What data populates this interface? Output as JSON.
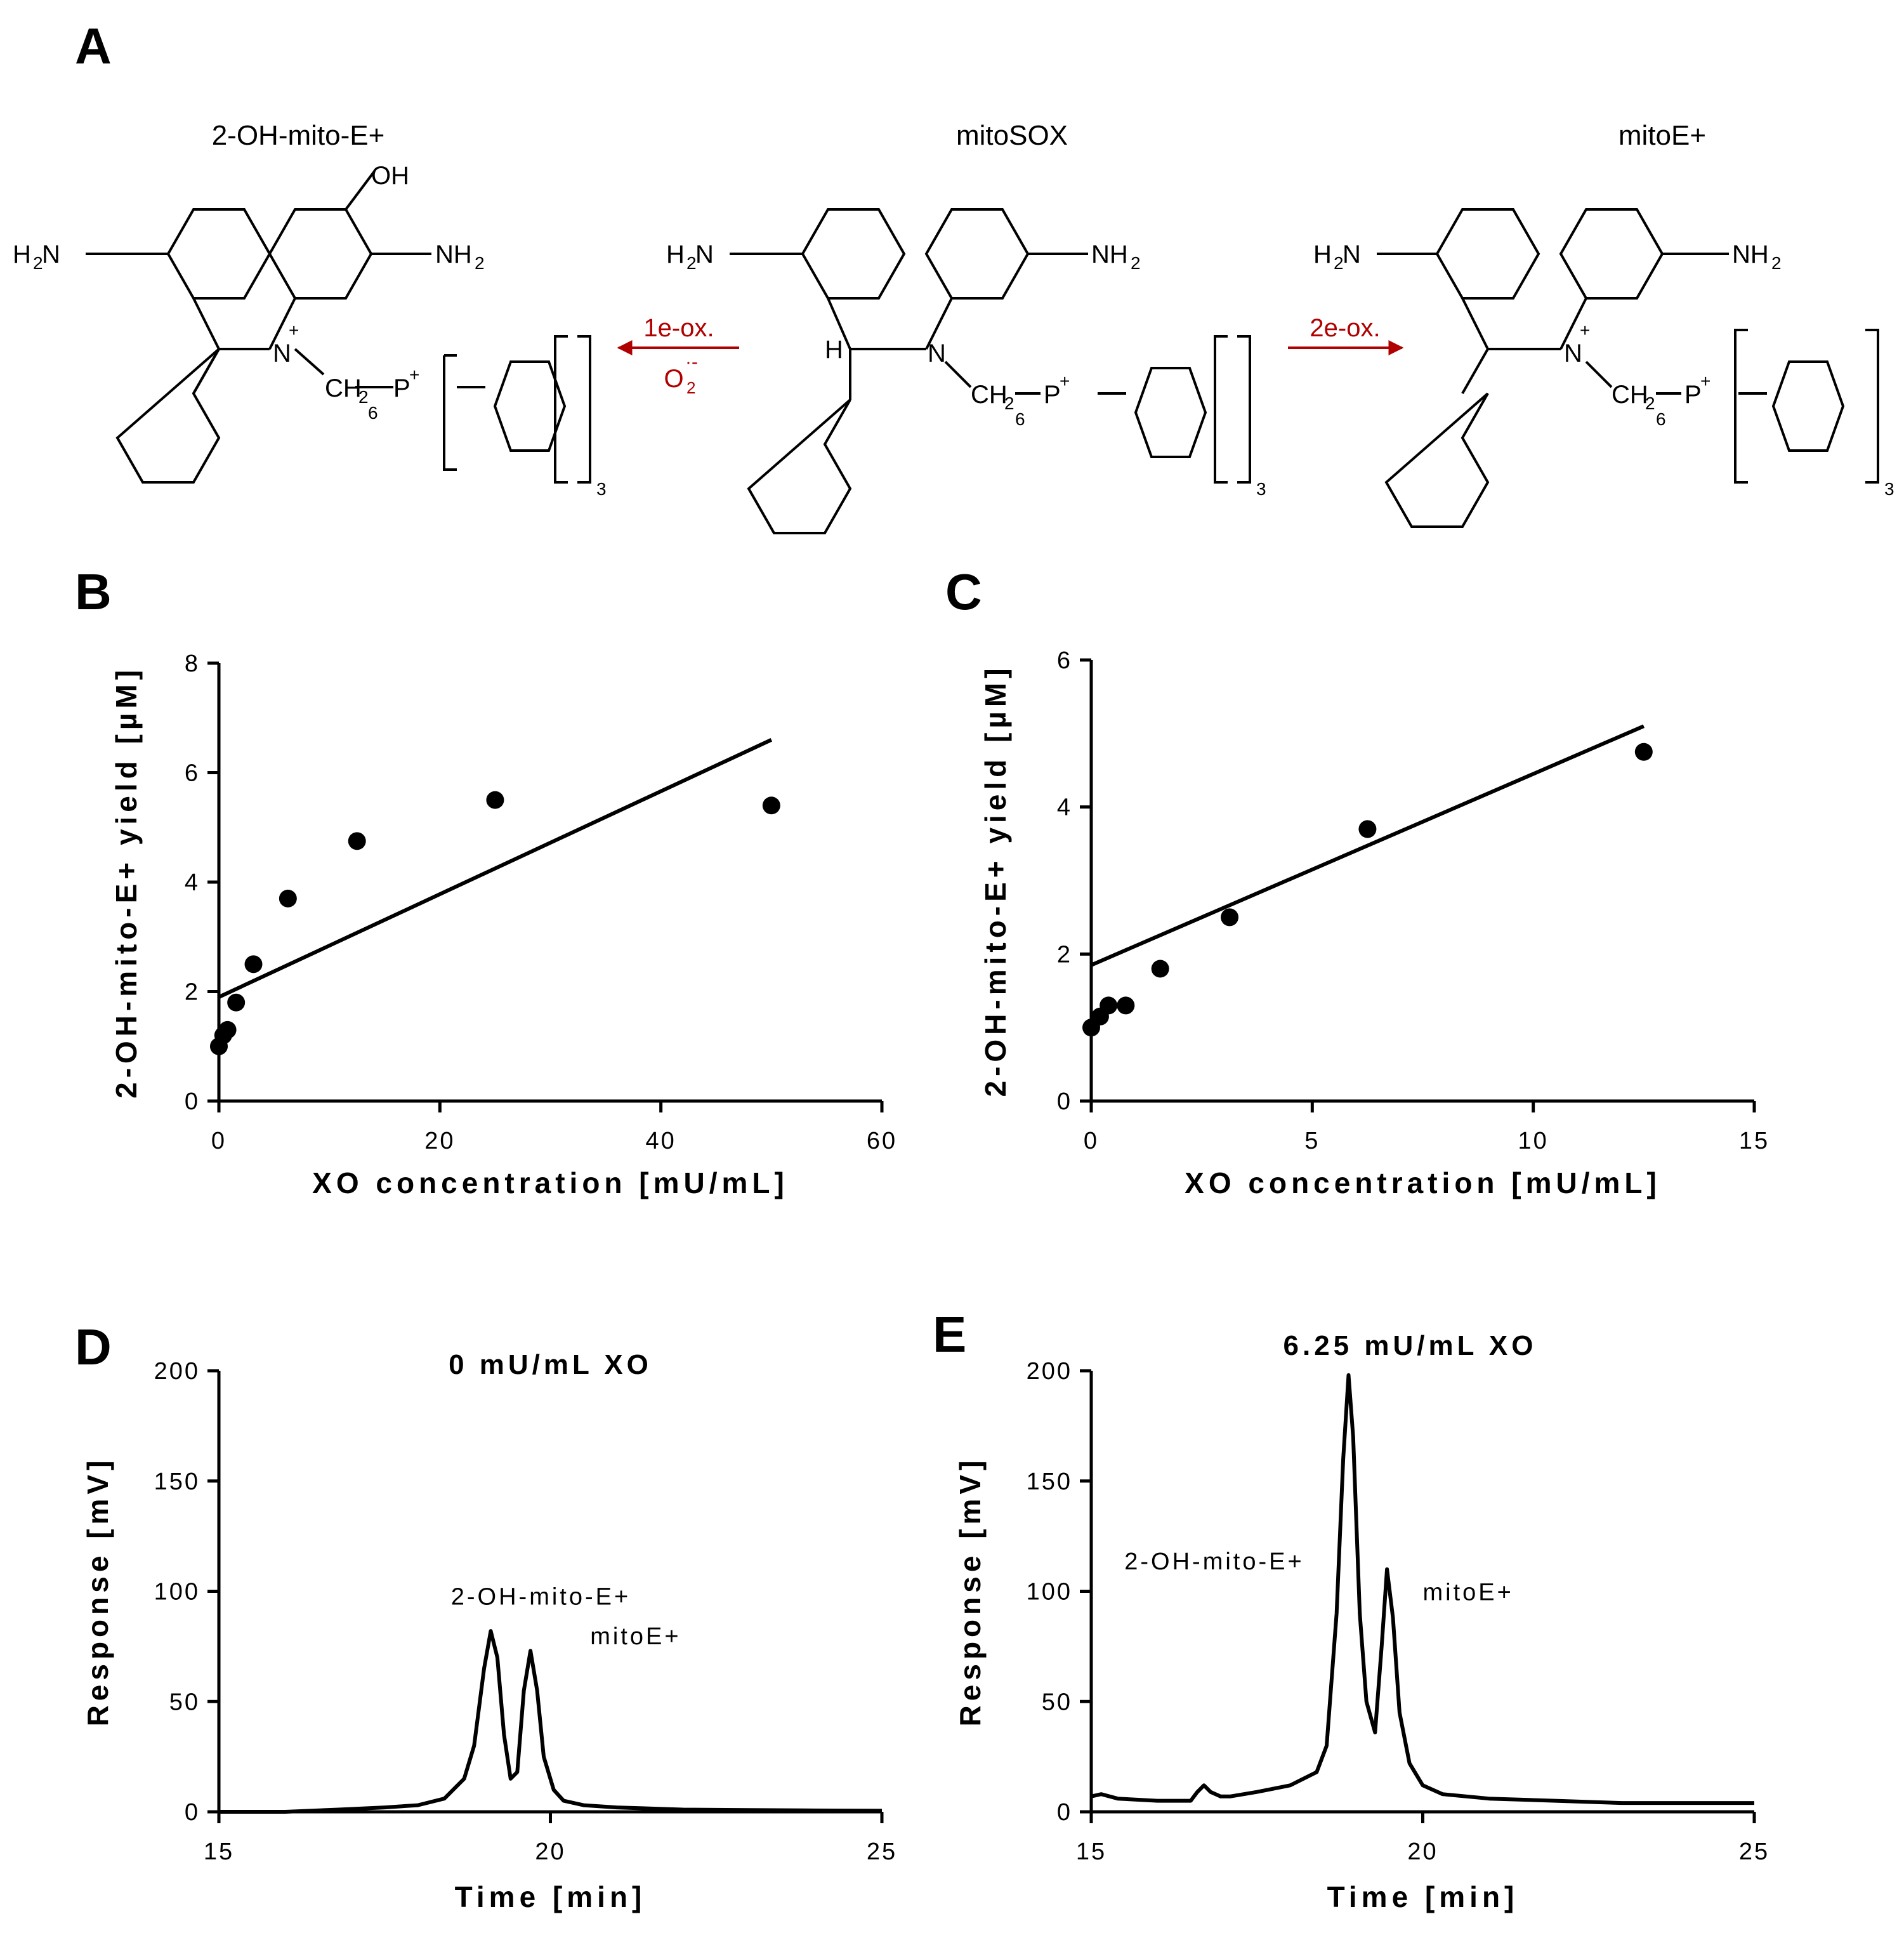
{
  "panel_letters": {
    "a": "A",
    "b": "B",
    "c": "C",
    "d": "D",
    "e": "E"
  },
  "scheme": {
    "left_name": "2-OH-mito-E+",
    "center_name": "mitoSOX",
    "right_name": "mitoE+",
    "left_arrow_top": "1e-ox.",
    "left_arrow_bottom": "O",
    "left_arrow_bottom_sub": "2",
    "left_arrow_bottom_sup": "·-",
    "right_arrow_top": "2e-ox.",
    "arrow_color": "#b00000",
    "atoms": {
      "nh2": "NH",
      "h2n": "H",
      "two": "2",
      "oh": "OH",
      "n": "N",
      "plus": "+",
      "ch": "CH",
      "six": "6",
      "p": "P",
      "three": "3",
      "h": "H"
    }
  },
  "chart_data": [
    {
      "id": "B",
      "type": "scatter",
      "title": "",
      "xlabel": "XO concentration [mU/mL]",
      "ylabel": "2-OH-mito-E+ yield [µM]",
      "xlim": [
        0,
        60
      ],
      "ylim": [
        0,
        8
      ],
      "xticks": [
        0,
        20,
        40,
        60
      ],
      "yticks": [
        0,
        2,
        4,
        6,
        8
      ],
      "x": [
        0,
        0.39,
        0.78,
        1.56,
        3.13,
        6.25,
        12.5,
        25,
        50
      ],
      "y": [
        1.0,
        1.2,
        1.3,
        1.8,
        2.5,
        3.7,
        4.75,
        5.5,
        5.4
      ],
      "fit_line": {
        "x": [
          0,
          50
        ],
        "y": [
          1.9,
          6.6
        ]
      }
    },
    {
      "id": "C",
      "type": "scatter",
      "title": "",
      "xlabel": "XO concentration [mU/mL]",
      "ylabel": "2-OH-mito-E+ yield [µM]",
      "xlim": [
        0,
        15
      ],
      "ylim": [
        0,
        6
      ],
      "xticks": [
        0,
        5,
        10,
        15
      ],
      "yticks": [
        0,
        2,
        4,
        6
      ],
      "x": [
        0,
        0.2,
        0.39,
        0.78,
        1.56,
        3.13,
        6.25,
        12.5
      ],
      "y": [
        1.0,
        1.15,
        1.3,
        1.3,
        1.8,
        2.5,
        3.7,
        4.75
      ],
      "fit_line": {
        "x": [
          0,
          12.5
        ],
        "y": [
          1.85,
          5.1
        ]
      }
    },
    {
      "id": "D",
      "type": "line",
      "title": "0 mU/mL XO",
      "xlabel": "Time [min]",
      "ylabel": "Response [mV]",
      "xlim": [
        15,
        25
      ],
      "ylim": [
        0,
        200
      ],
      "xticks": [
        15,
        20,
        25
      ],
      "yticks": [
        0,
        50,
        100,
        150,
        200
      ],
      "x": [
        15,
        16,
        16.8,
        17.5,
        18.0,
        18.4,
        18.7,
        18.85,
        19.0,
        19.1,
        19.2,
        19.3,
        19.4,
        19.5,
        19.6,
        19.7,
        19.8,
        19.9,
        20.05,
        20.2,
        20.5,
        21,
        22,
        23,
        24,
        25
      ],
      "y": [
        0,
        0,
        1,
        2,
        3,
        6,
        15,
        30,
        65,
        82,
        70,
        35,
        15,
        18,
        55,
        73,
        55,
        25,
        10,
        5,
        3,
        2,
        1,
        0.8,
        0.6,
        0.5
      ],
      "annotations": [
        {
          "text": "2-OH-mito-E+",
          "x": 18.5,
          "y": 94
        },
        {
          "text": "mitoE+",
          "x": 20.6,
          "y": 76
        }
      ]
    },
    {
      "id": "E",
      "type": "line",
      "title": "6.25 mU/mL XO",
      "xlabel": "Time [min]",
      "ylabel": "Response [mV]",
      "xlim": [
        15,
        25
      ],
      "ylim": [
        0,
        200
      ],
      "xticks": [
        15,
        20,
        25
      ],
      "yticks": [
        0,
        50,
        100,
        150,
        200
      ],
      "x": [
        15,
        15.15,
        15.4,
        16,
        16.5,
        16.6,
        16.7,
        16.8,
        16.95,
        17.1,
        17.5,
        18.0,
        18.4,
        18.55,
        18.7,
        18.8,
        18.88,
        18.95,
        19.05,
        19.15,
        19.28,
        19.38,
        19.46,
        19.55,
        19.65,
        19.8,
        20.0,
        20.3,
        21,
        22,
        23,
        24,
        25
      ],
      "y": [
        7,
        8,
        6,
        5,
        5,
        9,
        12,
        9,
        7,
        7,
        9,
        12,
        18,
        30,
        90,
        160,
        198,
        170,
        90,
        50,
        36,
        75,
        110,
        88,
        45,
        22,
        12,
        8,
        6,
        5,
        4,
        4,
        4
      ],
      "annotations": [
        {
          "text": "2-OH-mito-E+",
          "x": 15.5,
          "y": 110
        },
        {
          "text": "mitoE+",
          "x": 20.0,
          "y": 96
        }
      ]
    }
  ]
}
